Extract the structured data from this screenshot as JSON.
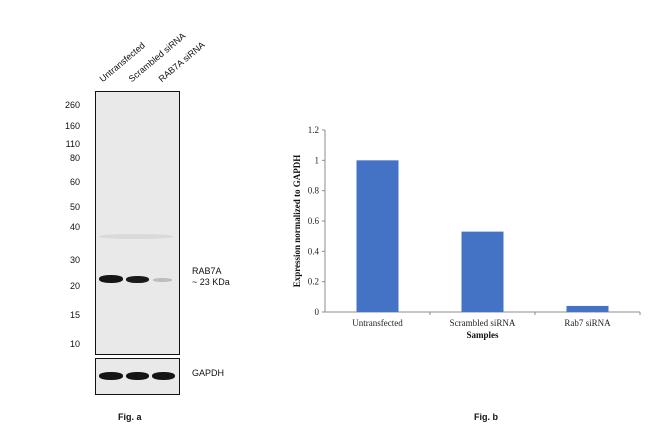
{
  "western_blot": {
    "lanes": [
      "Untransfected",
      "Scrambled siRNA",
      "RAB7A siRNA"
    ],
    "markers": [
      "260",
      "160",
      "110",
      "80",
      "60",
      "50",
      "40",
      "30",
      "20",
      "15",
      "10"
    ],
    "target_label_line1": "RAB7A",
    "target_label_line2": "~ 23 KDa",
    "control_label": "GAPDH",
    "figure_label": "Fig. a",
    "target_band_intensity": [
      1.0,
      0.9,
      0.15
    ]
  },
  "chart_data": {
    "type": "bar",
    "categories": [
      "Untransfected",
      "Scrambled siRNA",
      "Rab7 siRNA"
    ],
    "values": [
      1.0,
      0.53,
      0.04
    ],
    "xlabel": "Samples",
    "ylabel": "Expression normalized to GAPDH",
    "ylim": [
      0,
      1.2
    ],
    "yticks": [
      "0",
      "0.2",
      "0.4",
      "0.6",
      "0.8",
      "1",
      "1.2"
    ],
    "bar_color": "#4472C4",
    "figure_label": "Fig. b"
  }
}
